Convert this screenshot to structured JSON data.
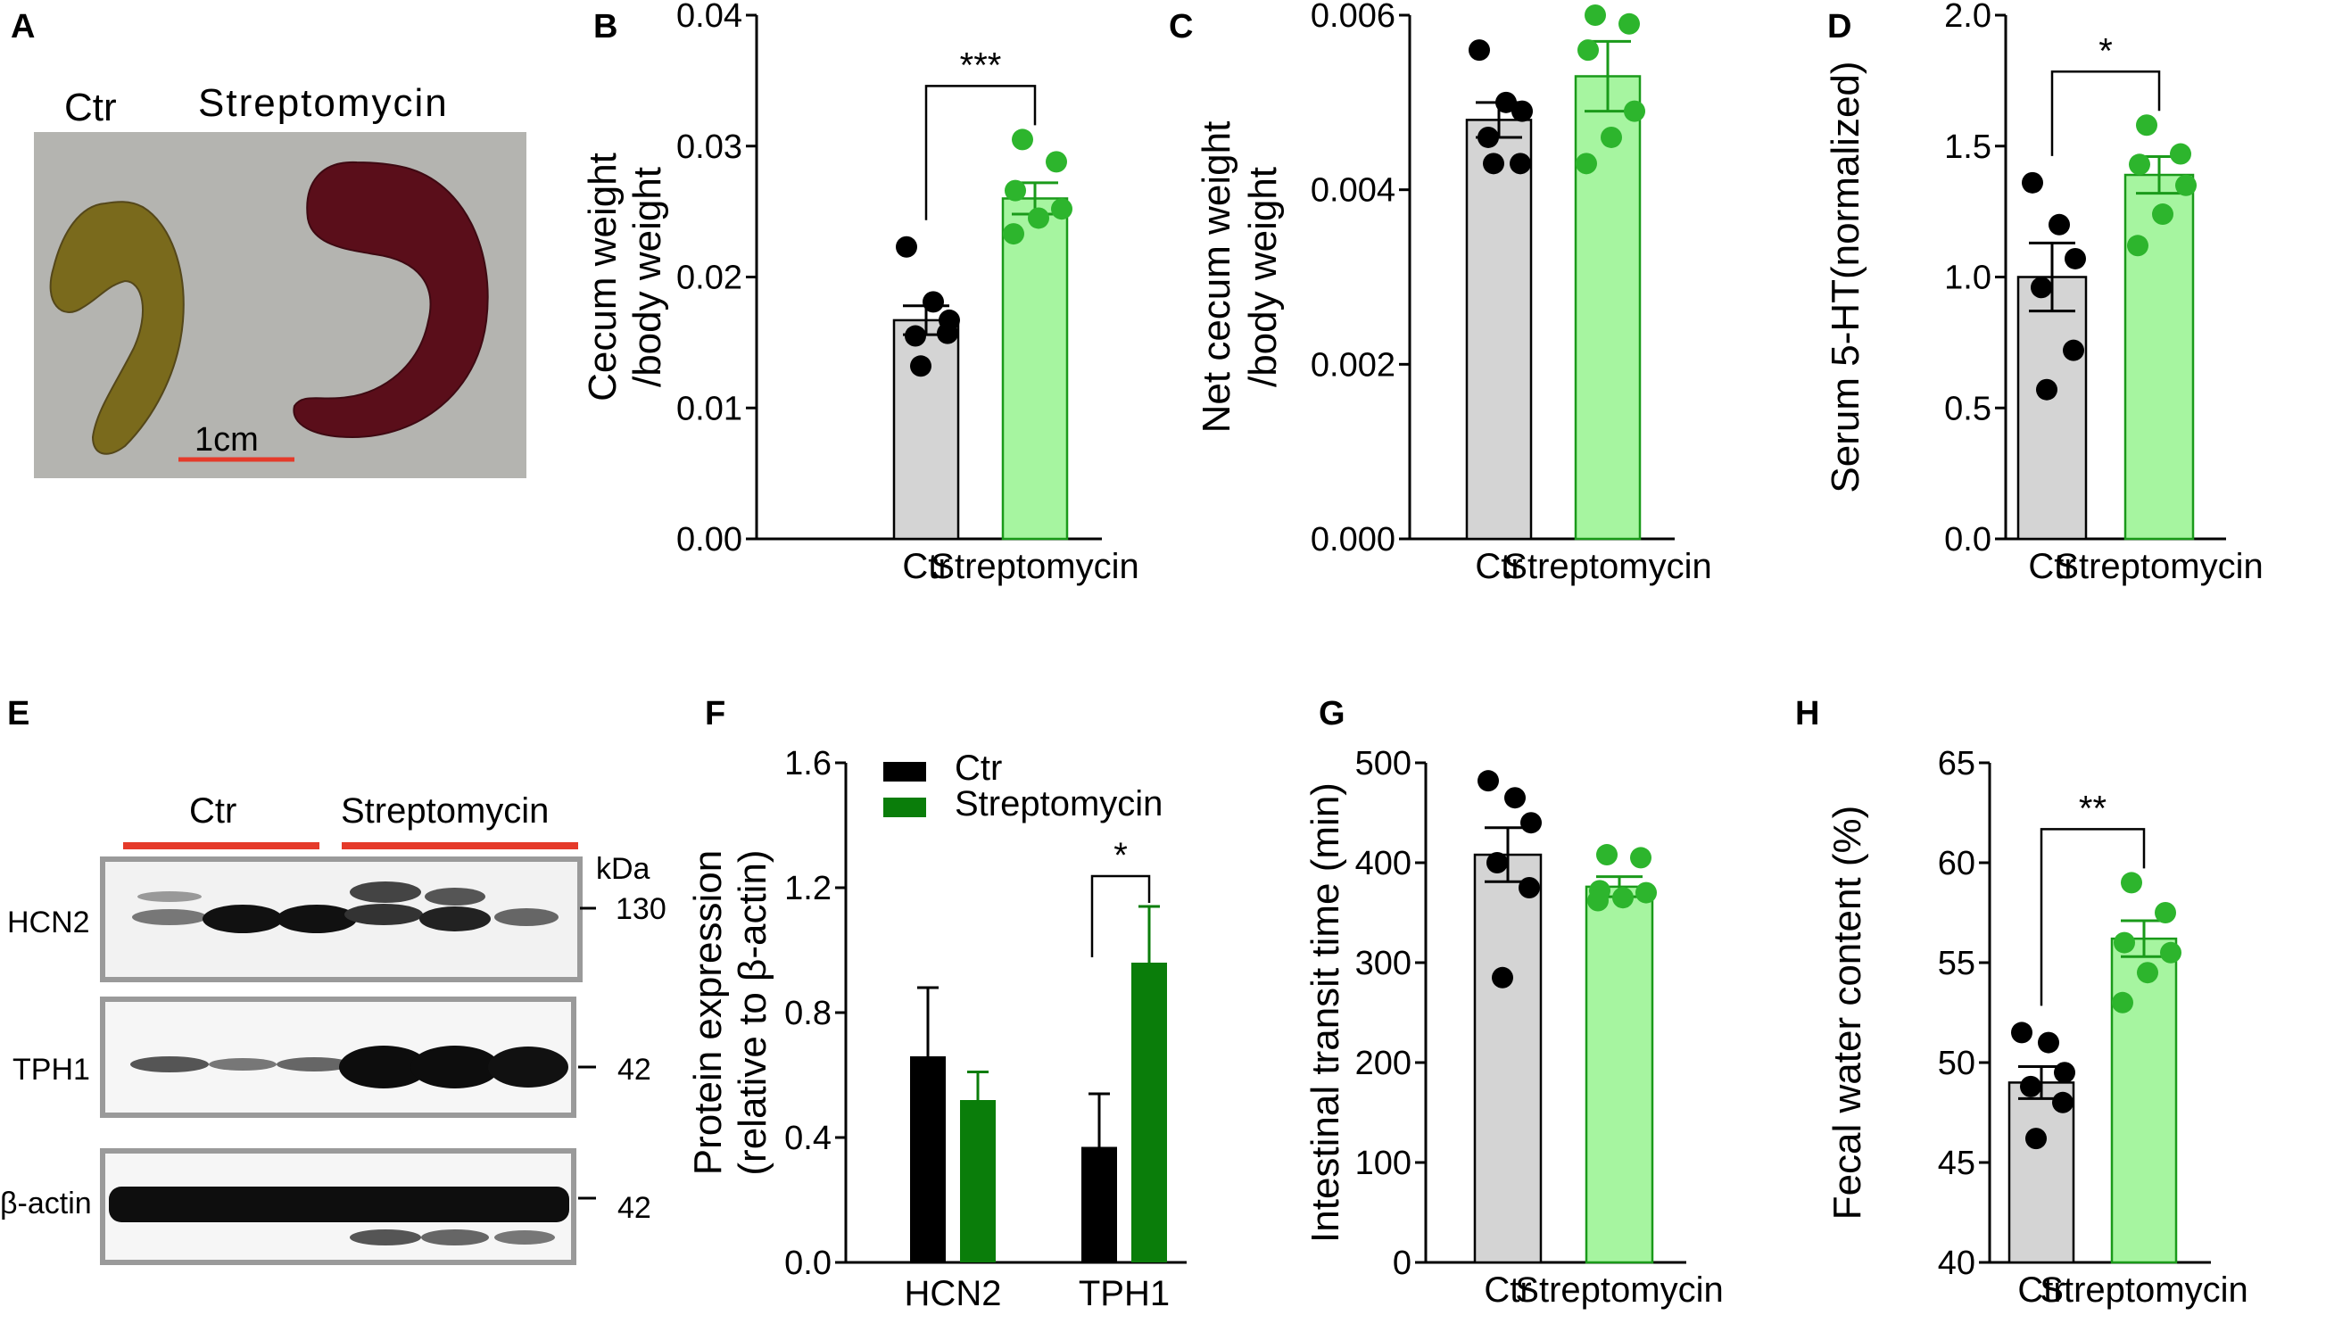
{
  "colors": {
    "ctr_bar": "#d4d4d4",
    "strep_bar": "#a6f5a0",
    "strep_edge": "#1a9a1a",
    "ctr_dot": "#000000",
    "strep_dot": "#2db52d",
    "f_ctr": "#000000",
    "f_strep": "#0a7d0a",
    "scale_red": "#e53a2a"
  },
  "panels": {
    "A": {
      "letter": "A",
      "ctr_label": "Ctr",
      "strep_label": "Streptomycin",
      "scale_label": "1cm"
    },
    "E": {
      "letter": "E",
      "group_ctr": "Ctr",
      "group_strep": "Streptomycin",
      "kda_label": "kDa",
      "rows": [
        {
          "name": "HCN2",
          "kda": "130"
        },
        {
          "name": "TPH1",
          "kda": "42"
        },
        {
          "name": "β-actin",
          "kda": "42"
        }
      ]
    }
  },
  "chart_data": [
    {
      "id": "B",
      "letter": "B",
      "type": "bar",
      "ylabel_lines": [
        "Cecum weight",
        "/body weight"
      ],
      "ylim": [
        0,
        0.04
      ],
      "ticks": [
        {
          "v": 0,
          "label": "0.00"
        },
        {
          "v": 0.01,
          "label": "0.01"
        },
        {
          "v": 0.02,
          "label": "0.02"
        },
        {
          "v": 0.03,
          "label": "0.03"
        },
        {
          "v": 0.04,
          "label": "0.04"
        }
      ],
      "categories": [
        "Ctr",
        "Streptomycin"
      ],
      "means": [
        0.0167,
        0.026
      ],
      "sem": [
        0.0011,
        0.0012
      ],
      "points": [
        [
          0.0223,
          0.0181,
          0.0167,
          0.0155,
          0.0157,
          0.0132
        ],
        [
          0.0305,
          0.0288,
          0.0266,
          0.0252,
          0.0245,
          0.0233
        ]
      ],
      "significance": "***"
    },
    {
      "id": "C",
      "letter": "C",
      "type": "bar",
      "ylabel_lines": [
        "Net cecum weight",
        "/body weight"
      ],
      "ylim": [
        0,
        0.006
      ],
      "ticks": [
        {
          "v": 0,
          "label": "0.000"
        },
        {
          "v": 0.002,
          "label": "0.002"
        },
        {
          "v": 0.004,
          "label": "0.004"
        },
        {
          "v": 0.006,
          "label": "0.006"
        }
      ],
      "categories": [
        "Ctr",
        "Streptomycin"
      ],
      "means": [
        0.0048,
        0.0053
      ],
      "sem": [
        0.0002,
        0.0004
      ],
      "points": [
        [
          0.0056,
          0.005,
          0.0049,
          0.0046,
          0.0043,
          0.0043
        ],
        [
          0.006,
          0.0059,
          0.0056,
          0.0049,
          0.0046,
          0.0043
        ]
      ],
      "significance": ""
    },
    {
      "id": "D",
      "letter": "D",
      "type": "bar",
      "ylabel_lines": [
        "Serum 5-HT(normalized)"
      ],
      "ylim": [
        0,
        2.0
      ],
      "ticks": [
        {
          "v": 0,
          "label": "0.0"
        },
        {
          "v": 0.5,
          "label": "0.5"
        },
        {
          "v": 1.0,
          "label": "1.0"
        },
        {
          "v": 1.5,
          "label": "1.5"
        },
        {
          "v": 2.0,
          "label": "2.0"
        }
      ],
      "categories": [
        "Ctr",
        "Streptomycin"
      ],
      "means": [
        1.0,
        1.39
      ],
      "sem": [
        0.13,
        0.07
      ],
      "points": [
        [
          1.36,
          1.2,
          1.07,
          0.96,
          0.72,
          0.57
        ],
        [
          1.58,
          1.47,
          1.43,
          1.35,
          1.24,
          1.12
        ]
      ],
      "significance": "*"
    },
    {
      "id": "F",
      "letter": "F",
      "type": "grouped-bar",
      "ylabel_lines": [
        "Protein expression",
        "(relative to β-actin)"
      ],
      "ylim": [
        0,
        1.6
      ],
      "ticks": [
        {
          "v": 0,
          "label": "0.0"
        },
        {
          "v": 0.4,
          "label": "0.4"
        },
        {
          "v": 0.8,
          "label": "0.8"
        },
        {
          "v": 1.2,
          "label": "1.2"
        },
        {
          "v": 1.6,
          "label": "1.6"
        }
      ],
      "categories": [
        "HCN2",
        "TPH1"
      ],
      "series": [
        {
          "name": "Ctr",
          "values": [
            0.66,
            0.37
          ],
          "err": [
            0.22,
            0.17
          ]
        },
        {
          "name": "Streptomycin",
          "values": [
            0.52,
            0.96
          ],
          "err": [
            0.09,
            0.18
          ]
        }
      ],
      "significance": "*"
    },
    {
      "id": "G",
      "letter": "G",
      "type": "bar",
      "ylabel_lines": [
        "Intestinal transit time (min)"
      ],
      "ylim": [
        0,
        500
      ],
      "ticks": [
        {
          "v": 0,
          "label": "0"
        },
        {
          "v": 100,
          "label": "100"
        },
        {
          "v": 200,
          "label": "200"
        },
        {
          "v": 300,
          "label": "300"
        },
        {
          "v": 400,
          "label": "400"
        },
        {
          "v": 500,
          "label": "500"
        }
      ],
      "categories": [
        "Ctr",
        "Streptomycin"
      ],
      "means": [
        408,
        376
      ],
      "sem": [
        27,
        10
      ],
      "points": [
        [
          482,
          465,
          440,
          400,
          375,
          285
        ],
        [
          408,
          405,
          372,
          370,
          365,
          362
        ]
      ],
      "significance": ""
    },
    {
      "id": "H",
      "letter": "H",
      "type": "bar",
      "ylabel_lines": [
        "Fecal water content (%)"
      ],
      "ylim": [
        40,
        65
      ],
      "ticks": [
        {
          "v": 40,
          "label": "40"
        },
        {
          "v": 45,
          "label": "45"
        },
        {
          "v": 50,
          "label": "50"
        },
        {
          "v": 55,
          "label": "55"
        },
        {
          "v": 60,
          "label": "60"
        },
        {
          "v": 65,
          "label": "65"
        }
      ],
      "categories": [
        "Ctr",
        "Streptomycin"
      ],
      "means": [
        49.0,
        56.2
      ],
      "sem": [
        0.8,
        0.9
      ],
      "points": [
        [
          51.5,
          51.0,
          49.5,
          48.8,
          48.0,
          46.2
        ],
        [
          59.0,
          57.5,
          56.0,
          55.5,
          54.5,
          53.0
        ]
      ],
      "significance": "**"
    }
  ]
}
